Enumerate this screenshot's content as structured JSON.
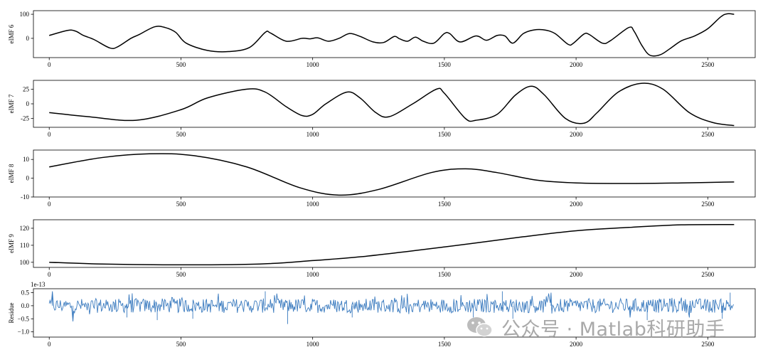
{
  "chart_data": [
    {
      "type": "line",
      "ylabel": "eIMF 6",
      "xlim": [
        -60,
        2680
      ],
      "ylim": [
        -80,
        115
      ],
      "xticks": [
        0,
        500,
        1000,
        1500,
        2000,
        2500
      ],
      "yticks": [
        0,
        100
      ],
      "line_color": "#000000",
      "points": [
        [
          0,
          12
        ],
        [
          70,
          33
        ],
        [
          100,
          30
        ],
        [
          130,
          12
        ],
        [
          170,
          -5
        ],
        [
          230,
          -40
        ],
        [
          260,
          -35
        ],
        [
          310,
          0
        ],
        [
          340,
          15
        ],
        [
          400,
          48
        ],
        [
          440,
          45
        ],
        [
          480,
          25
        ],
        [
          520,
          -20
        ],
        [
          600,
          -50
        ],
        [
          680,
          -55
        ],
        [
          760,
          -38
        ],
        [
          820,
          25
        ],
        [
          840,
          22
        ],
        [
          900,
          -12
        ],
        [
          960,
          0
        ],
        [
          990,
          -2
        ],
        [
          1020,
          2
        ],
        [
          1060,
          -12
        ],
        [
          1100,
          0
        ],
        [
          1140,
          20
        ],
        [
          1180,
          8
        ],
        [
          1230,
          -15
        ],
        [
          1270,
          -17
        ],
        [
          1310,
          8
        ],
        [
          1330,
          -2
        ],
        [
          1360,
          -12
        ],
        [
          1390,
          5
        ],
        [
          1420,
          -12
        ],
        [
          1460,
          -20
        ],
        [
          1500,
          20
        ],
        [
          1520,
          20
        ],
        [
          1560,
          -15
        ],
        [
          1620,
          10
        ],
        [
          1660,
          -8
        ],
        [
          1700,
          12
        ],
        [
          1730,
          10
        ],
        [
          1760,
          -20
        ],
        [
          1800,
          20
        ],
        [
          1840,
          35
        ],
        [
          1880,
          35
        ],
        [
          1920,
          20
        ],
        [
          1970,
          -25
        ],
        [
          1990,
          -20
        ],
        [
          2030,
          18
        ],
        [
          2050,
          16
        ],
        [
          2100,
          -20
        ],
        [
          2130,
          -10
        ],
        [
          2200,
          45
        ],
        [
          2220,
          30
        ],
        [
          2250,
          -30
        ],
        [
          2280,
          -70
        ],
        [
          2320,
          -68
        ],
        [
          2360,
          -40
        ],
        [
          2400,
          -10
        ],
        [
          2450,
          10
        ],
        [
          2500,
          40
        ],
        [
          2550,
          90
        ],
        [
          2575,
          102
        ],
        [
          2600,
          100
        ]
      ]
    },
    {
      "type": "line",
      "ylabel": "eIMF 7",
      "xlim": [
        -60,
        2680
      ],
      "ylim": [
        -40,
        40
      ],
      "xticks": [
        0,
        500,
        1000,
        1500,
        2000,
        2500
      ],
      "yticks": [
        -25,
        0,
        25
      ],
      "line_color": "#000000",
      "points": [
        [
          0,
          -15
        ],
        [
          150,
          -22
        ],
        [
          330,
          -28
        ],
        [
          500,
          -10
        ],
        [
          600,
          10
        ],
        [
          750,
          25
        ],
        [
          820,
          20
        ],
        [
          900,
          -5
        ],
        [
          960,
          -20
        ],
        [
          1000,
          -18
        ],
        [
          1050,
          0
        ],
        [
          1130,
          20
        ],
        [
          1180,
          10
        ],
        [
          1240,
          -15
        ],
        [
          1290,
          -22
        ],
        [
          1380,
          0
        ],
        [
          1470,
          25
        ],
        [
          1500,
          18
        ],
        [
          1580,
          -25
        ],
        [
          1620,
          -28
        ],
        [
          1700,
          -18
        ],
        [
          1770,
          15
        ],
        [
          1830,
          30
        ],
        [
          1880,
          15
        ],
        [
          1960,
          -25
        ],
        [
          2030,
          -33
        ],
        [
          2080,
          -15
        ],
        [
          2160,
          20
        ],
        [
          2250,
          35
        ],
        [
          2330,
          25
        ],
        [
          2430,
          -15
        ],
        [
          2520,
          -32
        ],
        [
          2600,
          -37
        ]
      ]
    },
    {
      "type": "line",
      "ylabel": "eIMF 8",
      "xlim": [
        -60,
        2680
      ],
      "ylim": [
        -10,
        15
      ],
      "xticks": [
        0,
        500,
        1000,
        1500,
        2000,
        2500
      ],
      "yticks": [
        -10,
        0,
        10
      ],
      "line_color": "#000000",
      "points": [
        [
          0,
          6
        ],
        [
          200,
          11
        ],
        [
          380,
          13
        ],
        [
          550,
          12
        ],
        [
          750,
          6
        ],
        [
          950,
          -5
        ],
        [
          1100,
          -9
        ],
        [
          1250,
          -6
        ],
        [
          1450,
          3
        ],
        [
          1580,
          5
        ],
        [
          1700,
          3
        ],
        [
          1850,
          -1
        ],
        [
          2000,
          -2.5
        ],
        [
          2200,
          -2.8
        ],
        [
          2400,
          -2.5
        ],
        [
          2600,
          -2
        ]
      ]
    },
    {
      "type": "line",
      "ylabel": "eIMF 9",
      "xlim": [
        -60,
        2680
      ],
      "ylim": [
        97,
        125
      ],
      "xticks": [
        0,
        500,
        1000,
        1500,
        2000,
        2500
      ],
      "yticks": [
        100,
        110,
        120
      ],
      "line_color": "#000000",
      "points": [
        [
          0,
          100
        ],
        [
          200,
          99
        ],
        [
          500,
          98.5
        ],
        [
          800,
          99
        ],
        [
          1000,
          101
        ],
        [
          1200,
          103.5
        ],
        [
          1500,
          109
        ],
        [
          1800,
          115
        ],
        [
          2000,
          118.5
        ],
        [
          2200,
          120.5
        ],
        [
          2400,
          122
        ],
        [
          2600,
          122.2
        ]
      ]
    },
    {
      "type": "line",
      "ylabel": "Residue",
      "offset_text": "1e-13",
      "xlim": [
        -60,
        2680
      ],
      "ylim": [
        -1.2,
        0.65
      ],
      "xticks": [
        0,
        500,
        1000,
        1500,
        2000,
        2500
      ],
      "yticks": [
        -1.0,
        -0.5,
        0.0,
        0.5
      ],
      "ytick_labels": [
        "−1.0",
        "−0.5",
        "0.0",
        "0.5"
      ],
      "line_color": "#3b7bbf",
      "values_range": [
        -0.7,
        0.6
      ],
      "spikes": [
        [
          12,
          0.55
        ],
        [
          90,
          -0.6
        ],
        [
          295,
          -0.45
        ],
        [
          410,
          -0.55
        ],
        [
          545,
          -0.5
        ],
        [
          820,
          0.55
        ],
        [
          905,
          -0.7
        ],
        [
          1150,
          -0.45
        ],
        [
          1610,
          -0.45
        ],
        [
          1720,
          0.55
        ],
        [
          1760,
          -0.5
        ],
        [
          1905,
          0.5
        ],
        [
          2205,
          -0.45
        ],
        [
          2270,
          -0.55
        ],
        [
          2430,
          -0.45
        ],
        [
          2555,
          -0.5
        ],
        [
          2585,
          0.5
        ]
      ]
    }
  ],
  "watermark": {
    "text": "公众号 · Matlab科研助手",
    "logo": "wechat-icon"
  }
}
